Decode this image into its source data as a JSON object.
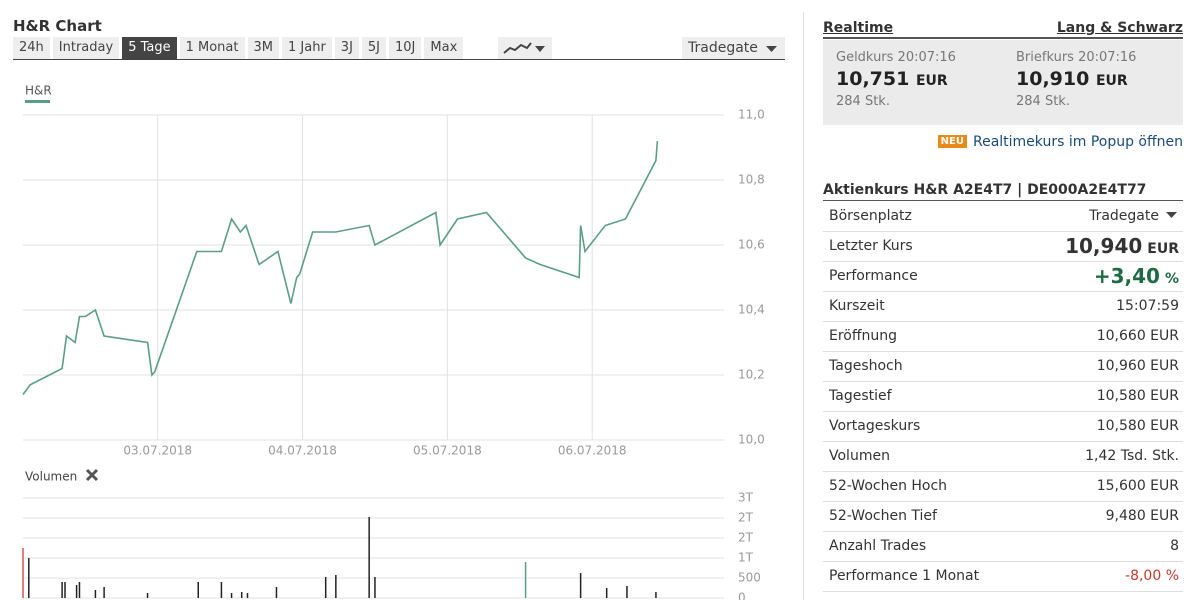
{
  "header": {
    "title": "H&R Chart"
  },
  "tabs": [
    "24h",
    "Intraday",
    "5 Tage",
    "1 Monat",
    "3M",
    "1 Jahr",
    "3J",
    "5J",
    "10J",
    "Max"
  ],
  "selected_tab": 2,
  "exchange_select": "Tradegate",
  "chart_data": [
    {
      "type": "line",
      "series": [
        {
          "name": "H&R",
          "color": "#5a9e87",
          "x": [
            2.07,
            2.12,
            2.34,
            2.37,
            2.43,
            2.46,
            2.5,
            2.57,
            2.63,
            2.93,
            2.96,
            2.98,
            3.27,
            3.44,
            3.51,
            3.57,
            3.61,
            3.7,
            3.83,
            3.92,
            3.96,
            3.98,
            4.07,
            4.23,
            4.46,
            4.5,
            4.92,
            4.95,
            5.07,
            5.27,
            5.54,
            5.64,
            5.91,
            5.92,
            5.95,
            6.09,
            6.23,
            6.44,
            6.45
          ],
          "values": [
            10.14,
            10.17,
            10.22,
            10.32,
            10.3,
            10.38,
            10.38,
            10.4,
            10.32,
            10.3,
            10.2,
            10.21,
            10.58,
            10.58,
            10.68,
            10.64,
            10.66,
            10.54,
            10.58,
            10.42,
            10.5,
            10.51,
            10.64,
            10.64,
            10.66,
            10.6,
            10.7,
            10.6,
            10.68,
            10.7,
            10.56,
            10.54,
            10.5,
            10.66,
            10.58,
            10.66,
            10.68,
            10.86,
            10.92
          ]
        }
      ],
      "xlim": [
        2.07,
        6.91
      ],
      "xticks": [
        {
          "value": 3,
          "label": "03.07.2018"
        },
        {
          "value": 4,
          "label": "04.07.2018"
        },
        {
          "value": 5,
          "label": "05.07.2018"
        },
        {
          "value": 6,
          "label": "06.07.2018"
        }
      ],
      "ylim": [
        10,
        11
      ],
      "yticks": [
        {
          "value": 10,
          "label": "10,0"
        },
        {
          "value": 10.2,
          "label": "10,2"
        },
        {
          "value": 10.4,
          "label": "10,4"
        },
        {
          "value": 10.6,
          "label": "10,6"
        },
        {
          "value": 10.8,
          "label": "10,8"
        },
        {
          "value": 11,
          "label": "11,0"
        }
      ],
      "grid": true
    },
    {
      "type": "bar",
      "title": "Volumen",
      "series": [
        {
          "x": [
            2.07,
            2.11,
            2.34,
            2.36,
            2.44,
            2.46,
            2.57,
            2.63,
            2.93,
            3.28,
            3.44,
            3.51,
            3.58,
            3.62,
            3.82,
            4.16,
            4.23,
            4.46,
            4.5,
            5.54,
            5.92,
            6.1,
            6.24,
            6.44
          ],
          "values": [
            1250,
            1000,
            400,
            400,
            325,
            400,
            200,
            275,
            125,
            400,
            400,
            125,
            150,
            125,
            275,
            525,
            575,
            2025,
            525,
            900,
            625,
            250,
            300,
            150
          ],
          "colors": [
            "#d9534f",
            "#222222",
            "#222222",
            "#222222",
            "#222222",
            "#222222",
            "#222222",
            "#222222",
            "#222222",
            "#222222",
            "#222222",
            "#222222",
            "#222222",
            "#222222",
            "#222222",
            "#222222",
            "#222222",
            "#222222",
            "#222222",
            "#5a9e87",
            "#222222",
            "#222222",
            "#222222",
            "#222222"
          ]
        }
      ],
      "xlim": [
        2.07,
        6.91
      ],
      "ylim": [
        0,
        2500
      ],
      "yticks": [
        0,
        500,
        {
          "value": 1000,
          "label": "1T"
        },
        {
          "value": 1500,
          "label": "2T"
        },
        {
          "value": 2000,
          "label": "2T"
        },
        {
          "value": 2500,
          "label": "3T"
        }
      ],
      "grid": true
    }
  ],
  "realtime": {
    "title": "Realtime",
    "source": "Lang & Schwarz",
    "bid_label": "Geldkurs 20:07:16",
    "bid": "10,751",
    "bid_currency": "EUR",
    "bid_size": "284 Stk.",
    "ask_label": "Briefkurs 20:07:16",
    "ask": "10,910",
    "ask_currency": "EUR",
    "ask_size": "284 Stk.",
    "badge": "NEU",
    "popup_link": "Realtimekurs im Popup öffnen"
  },
  "table": {
    "title": "Aktienkurs H&R A2E4T7 | DE000A2E4T77",
    "rows": [
      [
        "Börsenplatz",
        "Tradegate"
      ],
      [
        "Letzter Kurs",
        "10,940",
        "EUR"
      ],
      [
        "Performance",
        "+3,40",
        "%"
      ],
      [
        "Kurszeit",
        "15:07:59"
      ],
      [
        "Eröffnung",
        "10,660 EUR"
      ],
      [
        "Tageshoch",
        "10,960 EUR"
      ],
      [
        "Tagestief",
        "10,580 EUR"
      ],
      [
        "Vortageskurs",
        "10,580 EUR"
      ],
      [
        "Volumen",
        "1,42 Tsd. Stk."
      ],
      [
        "52-Wochen Hoch",
        "15,600 EUR"
      ],
      [
        "52-Wochen Tief",
        "9,480 EUR"
      ],
      [
        "Anzahl Trades",
        "8"
      ],
      [
        "Performance 1 Monat",
        "-8,00 %"
      ]
    ]
  }
}
